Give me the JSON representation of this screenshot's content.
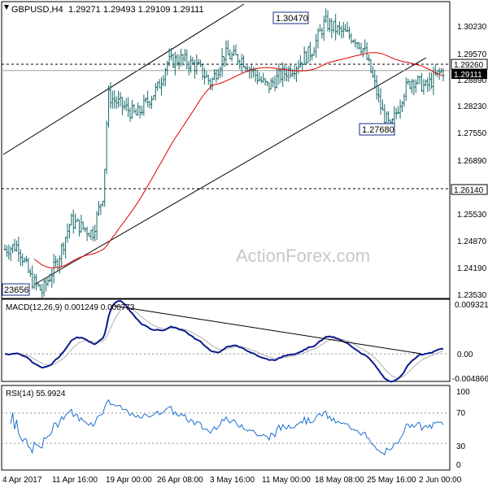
{
  "header": {
    "symbol": "GBPUSD,H4",
    "ohlc": "1.29271 1.29493 1.29109 1.29111"
  },
  "watermark": "ActionForex.com",
  "price_panel": {
    "y_ticks": [
      "1.30230",
      "1.29570",
      "1.28890",
      "1.28230",
      "1.27550",
      "1.26890",
      "1.25530",
      "1.24870",
      "1.24190",
      "1.23530"
    ],
    "labels": {
      "high_1": "1.30470",
      "low_1": "1.27680",
      "low_2": "23656",
      "level_1": "1.29260",
      "level_2": "1.29111",
      "support": "1.26140"
    },
    "colors": {
      "candle": "#1a6b6b",
      "ma": "#e00000",
      "channel": "#000000",
      "price_line": "#000000"
    }
  },
  "macd_panel": {
    "title": "MACD(12,26,9) 0.001249 0.000773",
    "y_ticks": [
      "0.009321",
      "0.00",
      "-0.004866"
    ],
    "colors": {
      "macd": "#0a1a8c",
      "signal": "#b0b0b0"
    }
  },
  "rsi_panel": {
    "title": "RSI(14) 55.9924",
    "y_ticks": [
      "100",
      "70",
      "30",
      "0"
    ],
    "colors": {
      "rsi": "#1e6fd0",
      "level": "#909090"
    }
  },
  "x_axis": {
    "labels": [
      "4 Apr 2017",
      "11 Apr 16:00",
      "19 Apr 00:00",
      "26 Apr 08:00",
      "3 May 16:00",
      "11 May 00:00",
      "18 May 08:00",
      "25 May 16:00",
      "2 Jun 00:00"
    ]
  },
  "chart_data": [
    {
      "type": "candlestick",
      "title": "GBPUSD,H4",
      "x_range": [
        "4 Apr 2017",
        "6 Jun 2017"
      ],
      "ylim": [
        1.2353,
        1.3075
      ],
      "annotations": [
        {
          "label": "1.30470",
          "value": 1.3047,
          "kind": "swing high"
        },
        {
          "label": "1.27680",
          "value": 1.2768,
          "kind": "swing low"
        },
        {
          "label": "23656",
          "value": 1.23656,
          "kind": "swing low"
        },
        {
          "label": "1.29260",
          "value": 1.2926,
          "kind": "horizontal level"
        },
        {
          "label": "1.29111",
          "value": 1.29111,
          "kind": "last price"
        },
        {
          "label": "1.26140",
          "value": 1.2614,
          "kind": "horizontal level"
        }
      ],
      "key_points": [
        {
          "time": "4 Apr 2017",
          "close": 1.247
        },
        {
          "time": "7 Apr 2017",
          "close": 1.2366
        },
        {
          "time": "18 Apr 2017",
          "close": 1.2885
        },
        {
          "time": "26 Apr 2017",
          "close": 1.293
        },
        {
          "time": "3 May 2017",
          "close": 1.2895
        },
        {
          "time": "11 May 2017",
          "close": 1.2885
        },
        {
          "time": "18 May 2017",
          "close": 1.3047
        },
        {
          "time": "25 May 2017",
          "close": 1.2768
        },
        {
          "time": "2 Jun 2017",
          "close": 1.2895
        },
        {
          "time": "6 Jun 2017",
          "close": 1.2911
        }
      ]
    },
    {
      "type": "line",
      "title": "MACD(12,26,9)",
      "ylim": [
        -0.004866,
        0.009321
      ],
      "series": [
        {
          "name": "MACD",
          "last": 0.001249
        },
        {
          "name": "Signal",
          "last": 0.000773
        }
      ]
    },
    {
      "type": "line",
      "title": "RSI(14)",
      "ylim": [
        0,
        100
      ],
      "levels": [
        70,
        30
      ],
      "series": [
        {
          "name": "RSI(14)",
          "last": 55.9924
        }
      ]
    }
  ]
}
